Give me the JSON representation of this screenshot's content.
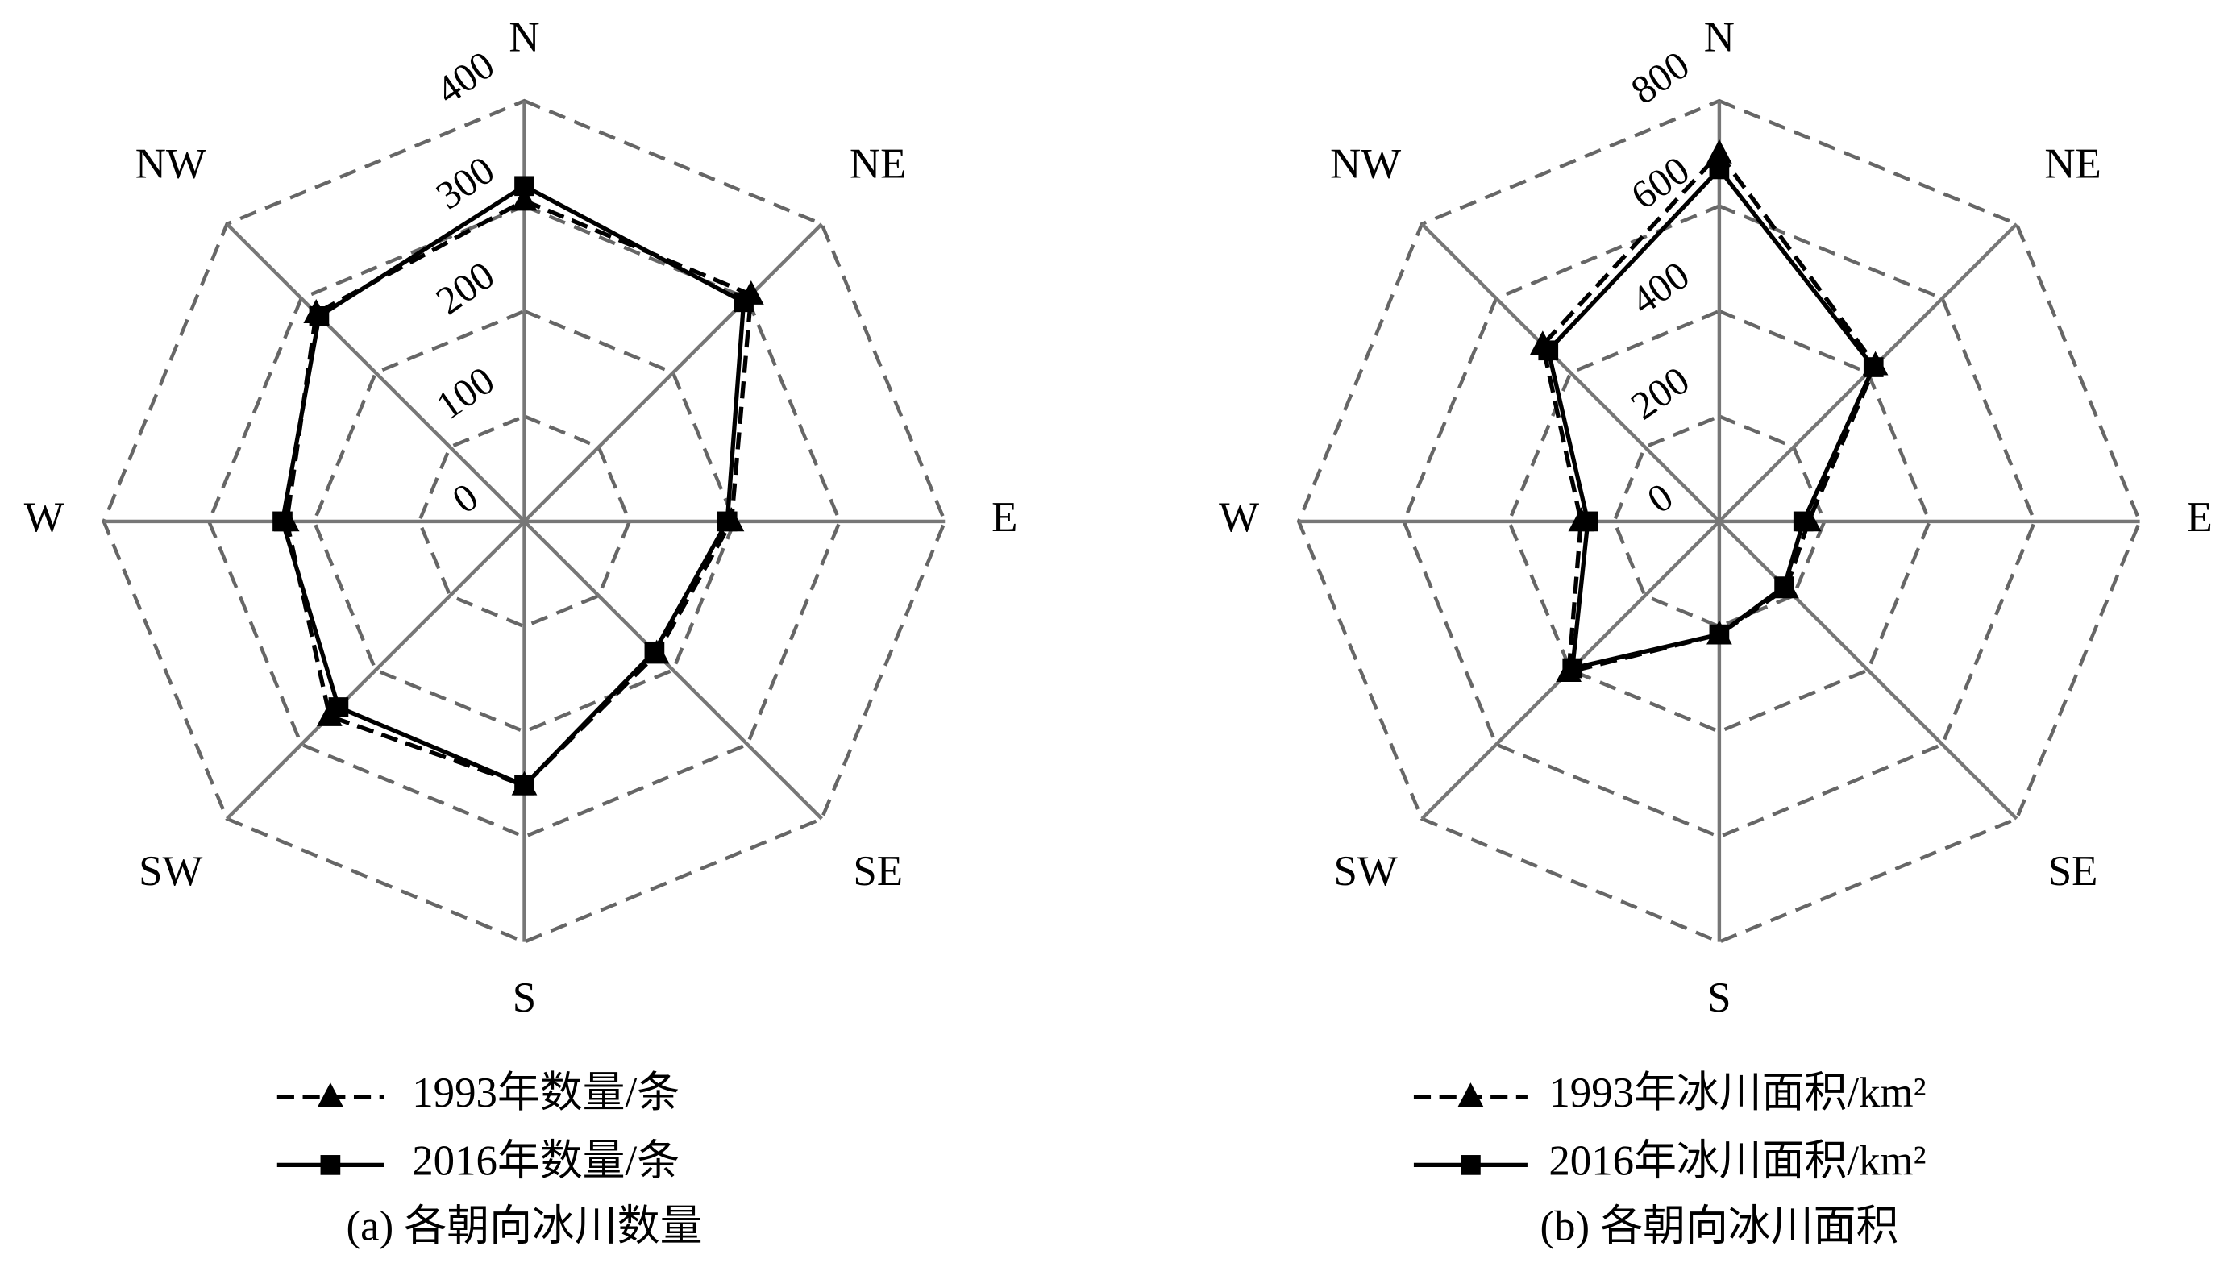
{
  "chart_data": [
    {
      "type": "radar",
      "caption": "(a) 各朝向冰川数量",
      "categories": [
        "N",
        "NE",
        "E",
        "SE",
        "S",
        "SW",
        "W",
        "NW"
      ],
      "rlim": [
        0,
        400
      ],
      "rticks": [
        0,
        100,
        200,
        300,
        400
      ],
      "series": [
        {
          "name": "1993年数量/条",
          "color": "#000000",
          "line_style": "dashed",
          "marker": "triangle",
          "values": [
            305,
            305,
            197,
            178,
            251,
            262,
            226,
            280
          ]
        },
        {
          "name": "2016年数量/条",
          "color": "#000000",
          "line_style": "solid",
          "marker": "square",
          "values": [
            319,
            295,
            193,
            175,
            251,
            250,
            230,
            276
          ]
        }
      ]
    },
    {
      "type": "radar",
      "caption": "(b) 各朝向冰川面积",
      "categories": [
        "N",
        "NE",
        "E",
        "SE",
        "S",
        "SW",
        "W",
        "NW"
      ],
      "rlim": [
        0,
        800
      ],
      "rticks": [
        0,
        200,
        400,
        600,
        800
      ],
      "series": [
        {
          "name": "1993年冰川面积/km²",
          "color": "#000000",
          "line_style": "dashed",
          "marker": "triangle",
          "values": [
            700,
            420,
            170,
            180,
            215,
            405,
            263,
            475
          ]
        },
        {
          "name": "2016年冰川面积/km²",
          "color": "#000000",
          "line_style": "solid",
          "marker": "square",
          "values": [
            670,
            415,
            160,
            175,
            215,
            395,
            250,
            460
          ]
        }
      ]
    }
  ]
}
